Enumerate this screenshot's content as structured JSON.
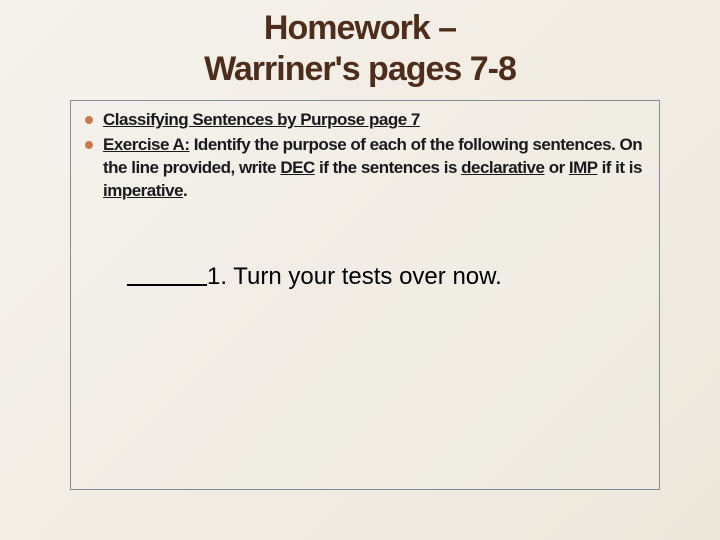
{
  "title_line1": "Homework –",
  "title_line2": "Warriner's pages 7-8",
  "bullets": [
    {
      "color": "#c97a4a",
      "html": "<span class='under'>Classifying Sentences by Purpose page 7</span>"
    },
    {
      "color": "#c97a4a",
      "html": "<span class='under'>Exercise A:</span> Identify the purpose of each of the following sentences.  On the line provided, write <span class='under'>DEC</span> if the sentences is <span class='under'>declarative</span> or <span class='under'>IMP</span> if it is <span class='under'>imperative</span>."
    }
  ],
  "question": {
    "number": "1.",
    "text": "Turn your tests over now."
  }
}
